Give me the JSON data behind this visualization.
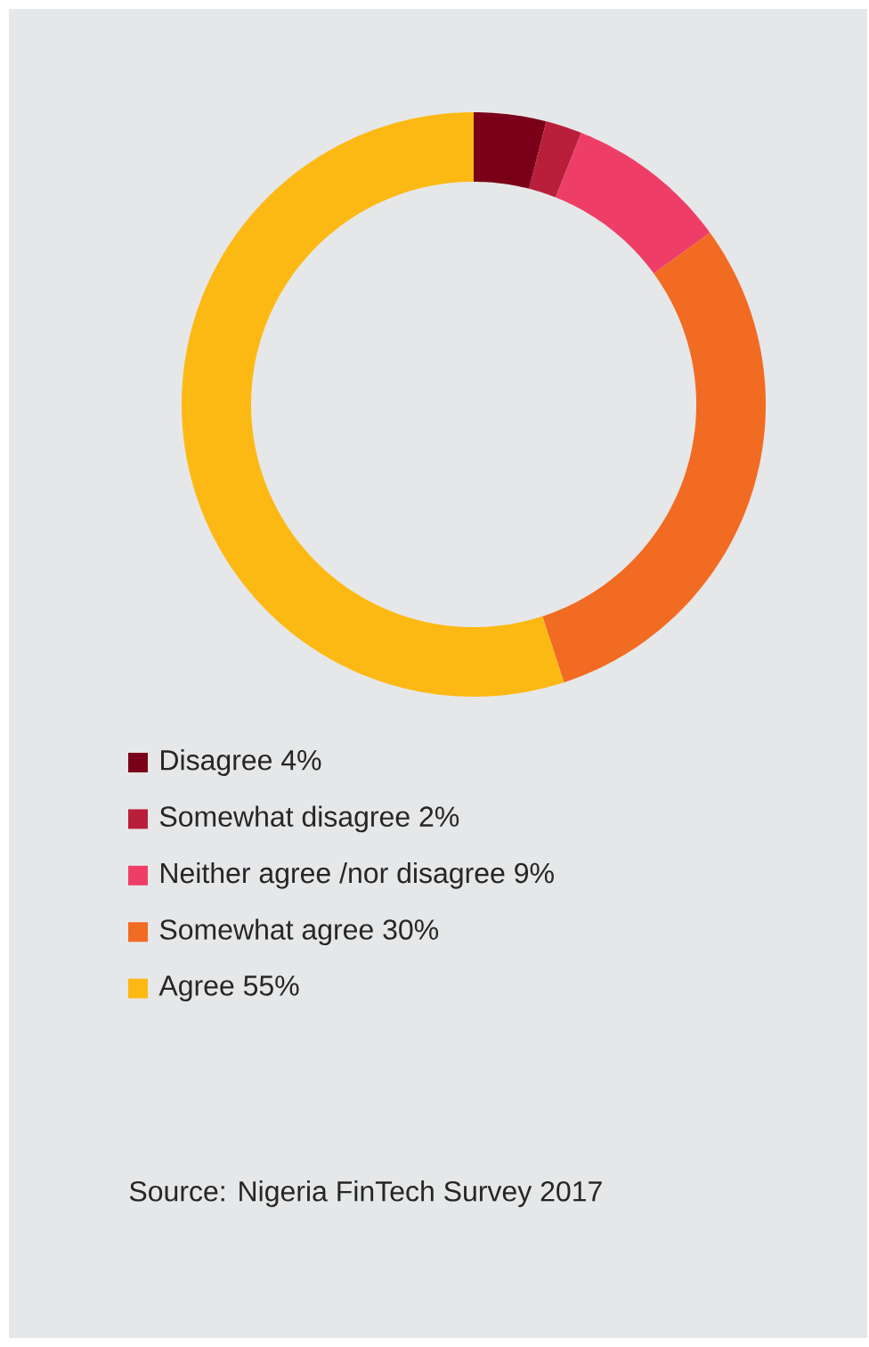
{
  "chart_data": {
    "type": "donut",
    "categories": [
      "Disagree 4%",
      "Somewhat disagree 2%",
      "Neither agree /nor disagree 9%",
      "Somewhat agree 30%",
      "Agree 55%"
    ],
    "values": [
      4,
      2,
      9,
      30,
      55
    ],
    "colors": [
      "#7a0019",
      "#b91f3a",
      "#ee3e67",
      "#f26b23",
      "#fdb913"
    ],
    "legend": "bottom",
    "annotations": [
      "Source: Nigeria FinTech Survey 2017"
    ]
  }
}
